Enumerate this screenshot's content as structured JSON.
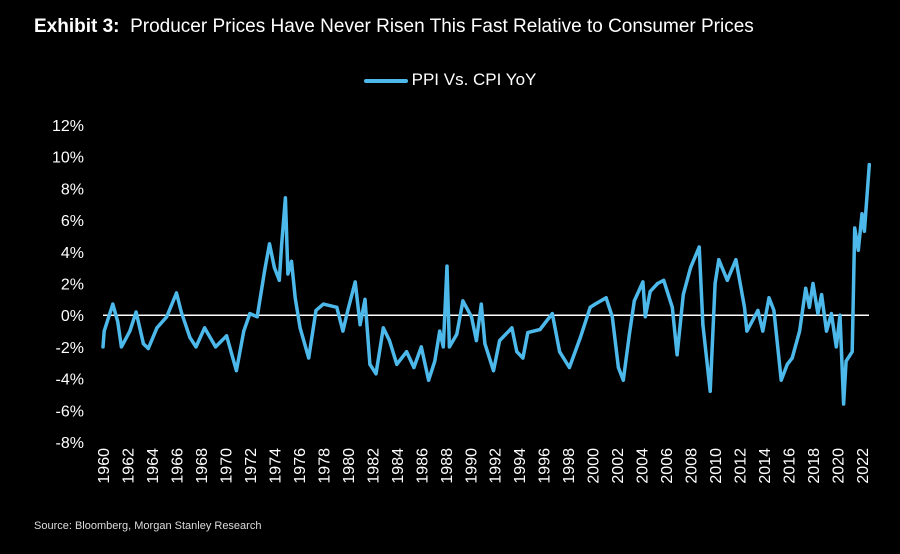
{
  "title": {
    "prefix": "Exhibit 3:",
    "text": "Producer Prices Have Never Risen This Fast Relative to Consumer Prices"
  },
  "source": "Source: Bloomberg, Morgan Stanley Research",
  "chart_data": {
    "type": "line",
    "title": "Producer Prices Have Never Risen This Fast Relative to Consumer Prices",
    "xlabel": "",
    "ylabel": "",
    "xlim": [
      1960,
      2022.7
    ],
    "ylim": [
      -8,
      12
    ],
    "yticks": [
      12,
      10,
      8,
      6,
      4,
      2,
      0,
      -2,
      -4,
      -6,
      -8
    ],
    "ytick_labels": [
      "12%",
      "10%",
      "8%",
      "6%",
      "4%",
      "2%",
      "0%",
      "-2%",
      "-4%",
      "-6%",
      "-8%"
    ],
    "xtick_labels": [
      "1960",
      "1962",
      "1964",
      "1966",
      "1968",
      "1970",
      "1972",
      "1974",
      "1976",
      "1978",
      "1980",
      "1982",
      "1984",
      "1986",
      "1988",
      "1990",
      "1992",
      "1994",
      "1996",
      "1998",
      "2000",
      "2002",
      "2004",
      "2006",
      "2008",
      "2010",
      "2012",
      "2014",
      "2016",
      "2018",
      "2020",
      "2022"
    ],
    "legend": {
      "position": "top-center",
      "entries": [
        "PPI Vs. CPI YoY"
      ]
    },
    "grid": false,
    "colors": {
      "series": "#4db8ea",
      "zero_line": "#ffffff",
      "background": "#000000"
    },
    "series": [
      {
        "name": "PPI Vs. CPI YoY",
        "x": [
          1960.0,
          1960.1,
          1960.8,
          1961.2,
          1961.5,
          1962.2,
          1962.7,
          1963.3,
          1963.7,
          1964.4,
          1965.2,
          1966.0,
          1966.4,
          1967.1,
          1967.6,
          1968.3,
          1969.2,
          1970.1,
          1970.9,
          1971.5,
          1972.0,
          1972.6,
          1973.2,
          1973.6,
          1974.0,
          1974.4,
          1974.6,
          1974.9,
          1975.1,
          1975.4,
          1975.7,
          1976.1,
          1976.8,
          1977.4,
          1978.0,
          1979.1,
          1979.6,
          1980.0,
          1980.6,
          1981.0,
          1981.4,
          1981.8,
          1982.3,
          1982.9,
          1983.4,
          1984.0,
          1984.8,
          1985.4,
          1986.0,
          1986.6,
          1987.1,
          1987.5,
          1987.8,
          1988.1,
          1988.3,
          1988.9,
          1989.4,
          1990.1,
          1990.5,
          1990.9,
          1991.2,
          1991.9,
          1992.4,
          1993.4,
          1993.8,
          1994.3,
          1994.7,
          1995.7,
          1996.7,
          1997.3,
          1998.1,
          1999.0,
          1999.8,
          2000.2,
          2001.1,
          2001.6,
          2002.1,
          2002.5,
          2003.0,
          2003.4,
          2004.1,
          2004.3,
          2004.7,
          2005.3,
          2005.8,
          2006.5,
          2006.9,
          2007.4,
          2008.0,
          2008.7,
          2009.0,
          2009.6,
          2010.0,
          2010.3,
          2011.0,
          2011.7,
          2012.4,
          2012.6,
          2013.5,
          2013.9,
          2014.4,
          2014.8,
          2015.4,
          2015.9,
          2016.3,
          2016.9,
          2017.4,
          2017.7,
          2018.0,
          2018.4,
          2018.7,
          2019.1,
          2019.5,
          2019.9,
          2020.2,
          2020.5,
          2020.7,
          2021.2,
          2021.4,
          2021.7,
          2022.0,
          2022.2,
          2022.6
        ],
        "values": [
          -2.0,
          -1.0,
          0.7,
          -0.4,
          -2.0,
          -1.0,
          0.2,
          -1.8,
          -2.1,
          -0.8,
          -0.1,
          1.4,
          0.2,
          -1.4,
          -2.0,
          -0.8,
          -2.0,
          -1.3,
          -3.5,
          -1.0,
          0.1,
          -0.1,
          2.8,
          4.5,
          3.0,
          2.2,
          4.5,
          7.4,
          2.6,
          3.4,
          1.1,
          -0.8,
          -2.7,
          0.3,
          0.7,
          0.5,
          -1.0,
          0.3,
          2.1,
          -0.6,
          1.0,
          -3.1,
          -3.7,
          -0.8,
          -1.6,
          -3.1,
          -2.3,
          -3.3,
          -2.0,
          -4.1,
          -2.9,
          -1.0,
          -2.0,
          3.1,
          -2.0,
          -1.2,
          0.9,
          -0.1,
          -1.6,
          0.7,
          -1.8,
          -3.5,
          -1.6,
          -0.8,
          -2.3,
          -2.7,
          -1.1,
          -0.9,
          0.1,
          -2.3,
          -3.3,
          -1.4,
          0.5,
          0.7,
          1.1,
          -0.1,
          -3.3,
          -4.1,
          -1.2,
          0.9,
          2.1,
          -0.1,
          1.5,
          2.0,
          2.2,
          0.5,
          -2.5,
          1.3,
          3.0,
          4.3,
          -0.6,
          -4.8,
          2.0,
          3.5,
          2.2,
          3.5,
          0.5,
          -1.0,
          0.3,
          -1.0,
          1.1,
          0.3,
          -4.1,
          -3.1,
          -2.7,
          -1.0,
          1.7,
          0.5,
          2.0,
          0.1,
          1.3,
          -1.0,
          0.1,
          -2.0,
          0.0,
          -5.6,
          -2.9,
          -2.3,
          5.5,
          4.1,
          6.4,
          5.3,
          9.5
        ]
      }
    ]
  }
}
